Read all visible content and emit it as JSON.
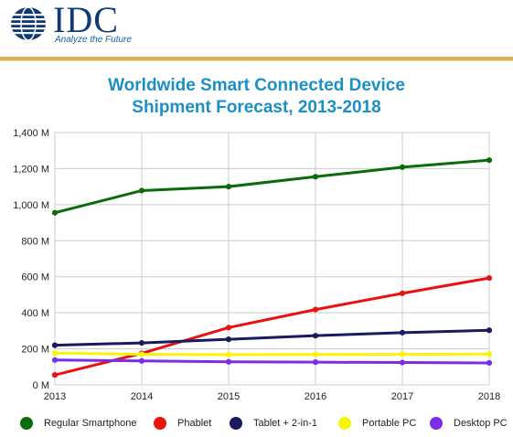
{
  "brand": {
    "logo_text": "IDC",
    "tagline": "Analyze the Future"
  },
  "chart_data": {
    "type": "line",
    "title_line1": "Worldwide Smart Connected Device",
    "title_line2": "Shipment Forecast, 2013-2018",
    "x": [
      "2013",
      "2014",
      "2015",
      "2016",
      "2017",
      "2018"
    ],
    "ylim": [
      0,
      1400
    ],
    "yticks": [
      0,
      200,
      400,
      600,
      800,
      1000,
      1200,
      1400
    ],
    "ytick_labels": [
      "0 M",
      "200 M",
      "400 M",
      "600 M",
      "800 M",
      "1,000 M",
      "1,200 M",
      "1,400 M"
    ],
    "grid": true,
    "legend_position": "bottom",
    "series": [
      {
        "name": "Regular Smartphone",
        "color": "#0a6b0a",
        "values": [
          955,
          1078,
          1100,
          1155,
          1208,
          1247
        ]
      },
      {
        "name": "Phablet",
        "color": "#e8120f",
        "values": [
          55,
          175,
          318,
          418,
          508,
          593
        ]
      },
      {
        "name": "Tablet + 2-in-1",
        "color": "#1a1a5e",
        "values": [
          220,
          233,
          253,
          273,
          290,
          303
        ]
      },
      {
        "name": "Portable PC",
        "color": "#f5f50a",
        "values": [
          176,
          170,
          168,
          169,
          170,
          171
        ]
      },
      {
        "name": "Desktop PC",
        "color": "#7a2ee6",
        "values": [
          138,
          133,
          128,
          126,
          124,
          122
        ]
      }
    ]
  }
}
